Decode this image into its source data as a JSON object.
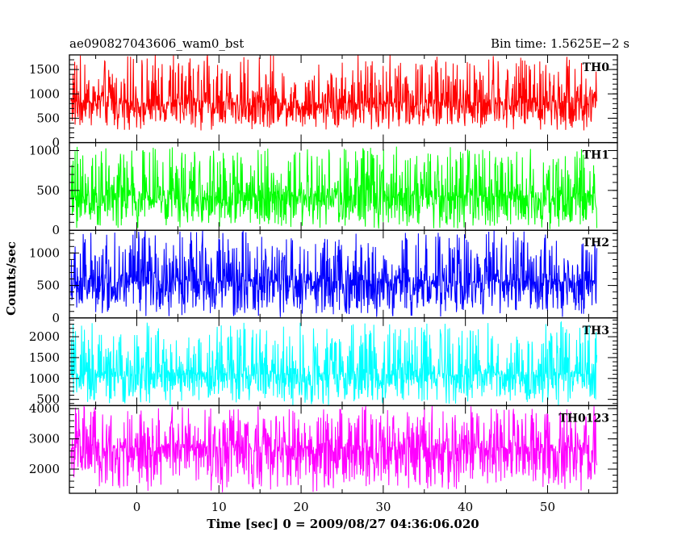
{
  "chart_data": {
    "type": "line",
    "title_left": "ae090827043606_wam0_bst",
    "title_right": "Bin time: 1.5625E−2 s",
    "xlabel": "Time [sec] 0 = 2009/08/27 04:36:06.020",
    "ylabel": "Counts/sec",
    "xlim": [
      -8.2,
      58.5
    ],
    "x_data_range": [
      -8.0,
      56.0
    ],
    "xticks": [
      0,
      10,
      20,
      30,
      40,
      50
    ],
    "grid": false,
    "panels": [
      {
        "name": "TH0",
        "color": "#ff0000",
        "ylim": [
          0,
          1800
        ],
        "yticks": [
          0,
          500,
          1000,
          1500
        ],
        "signal_range": [
          250,
          1800
        ],
        "signal_base": 820
      },
      {
        "name": "TH1",
        "color": "#00ff00",
        "ylim": [
          0,
          1100
        ],
        "yticks": [
          0,
          500,
          1000
        ],
        "signal_range": [
          0,
          1050
        ],
        "signal_base": 430
      },
      {
        "name": "TH2",
        "color": "#0000ff",
        "ylim": [
          0,
          1350
        ],
        "yticks": [
          0,
          500,
          1000
        ],
        "signal_range": [
          0,
          1350
        ],
        "signal_base": 560
      },
      {
        "name": "TH3",
        "color": "#00ffff",
        "ylim": [
          350,
          2450
        ],
        "yticks": [
          500,
          1000,
          1500,
          2000
        ],
        "signal_range": [
          350,
          2350
        ],
        "signal_base": 1100
      },
      {
        "name": "TH0123",
        "color": "#ff00ff",
        "ylim": [
          1200,
          4100
        ],
        "yticks": [
          2000,
          3000,
          4000
        ],
        "signal_range": [
          1200,
          4100
        ],
        "signal_base": 2700
      }
    ]
  }
}
